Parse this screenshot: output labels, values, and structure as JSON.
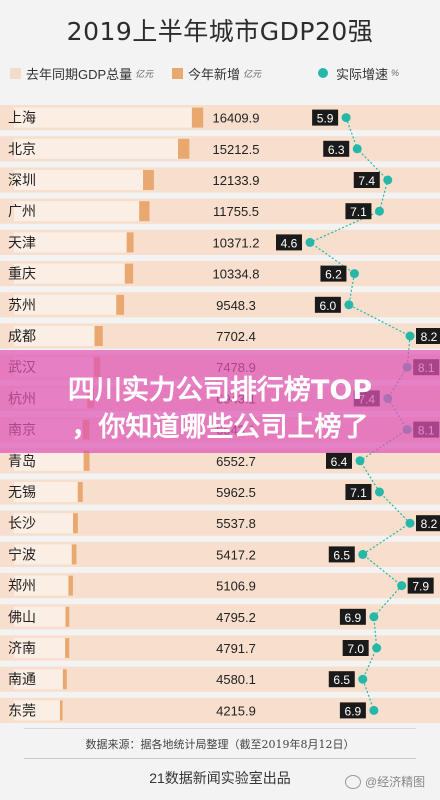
{
  "chart_data": {
    "type": "bar",
    "title": "2019上半年城市GDP20强",
    "legend": [
      {
        "label": "去年同期GDP总量",
        "unit": "亿元",
        "color": "#f4dccd"
      },
      {
        "label": "今年新增",
        "unit": "亿元",
        "color": "#e9a86f"
      },
      {
        "label": "实际增速",
        "unit": "%",
        "color": "#25b8a8"
      }
    ],
    "categories": [
      "上海",
      "北京",
      "深圳",
      "广州",
      "天津",
      "重庆",
      "苏州",
      "成都",
      "武汉",
      "杭州",
      "南京",
      "青岛",
      "无锡",
      "长沙",
      "宁波",
      "郑州",
      "佛山",
      "济南",
      "南通",
      "东莞"
    ],
    "series": [
      {
        "name": "去年同期GDP总量",
        "values": [
          15431,
          14225,
          11193,
          10859,
          9770,
          9608,
          8870,
          6980,
          6920,
          6360,
          5950,
          6040,
          5530,
          5120,
          5010,
          4720,
          4465,
          4432,
          4240,
          3984
        ]
      },
      {
        "name": "今年新增",
        "values": [
          979,
          988,
          941,
          897,
          601,
          727,
          678,
          722,
          559,
          583,
          593,
          513,
          432,
          418,
          407,
          387,
          330,
          360,
          340,
          232
        ]
      },
      {
        "name": "实际增速",
        "values": [
          5.9,
          6.3,
          7.4,
          7.1,
          4.6,
          6.2,
          6.0,
          8.2,
          8.1,
          7.4,
          8.1,
          6.4,
          7.1,
          8.2,
          6.5,
          7.9,
          6.9,
          7.0,
          6.5,
          6.9
        ]
      }
    ],
    "totals": [
      "16409.9",
      "15212.5",
      "12133.9",
      "11755.5",
      "10371.2",
      "10334.8",
      "9548.3",
      "7702.4",
      "7478.9",
      "6943.1",
      "6543.1",
      "6552.7",
      "5962.5",
      "5537.8",
      "5417.2",
      "5106.9",
      "4795.2",
      "4791.7",
      "4580.1",
      "4215.9"
    ],
    "growth_labels": [
      "5.9",
      "6.3",
      "7.4",
      "7.1",
      "4.6",
      "6.2",
      "6.0",
      "8.2",
      "8.1",
      "7.4",
      "8.1",
      "6.4",
      "7.1",
      "8.2",
      "6.5",
      "7.9",
      "6.9",
      "7.0",
      "6.5",
      "6.9"
    ],
    "growth_range": [
      4.6,
      8.2
    ],
    "gdp_max": 17000
  },
  "source": "数据来源：据各地统计局整理（截至2019年8月12日）",
  "footer": "21数据新闻实验室出品",
  "banner": {
    "line1": "四川实力公司排行榜TOP",
    "line2": "，你知道哪些公司上榜了"
  },
  "watermark": "@经济精图",
  "colors": {
    "stripe": "#f8dfcd",
    "base_bar": "#f4dccd",
    "new_bar": "#e9a86f",
    "line": "#25b8a8",
    "label_bg": "#1a1a1a",
    "banner": "#de54b6"
  }
}
